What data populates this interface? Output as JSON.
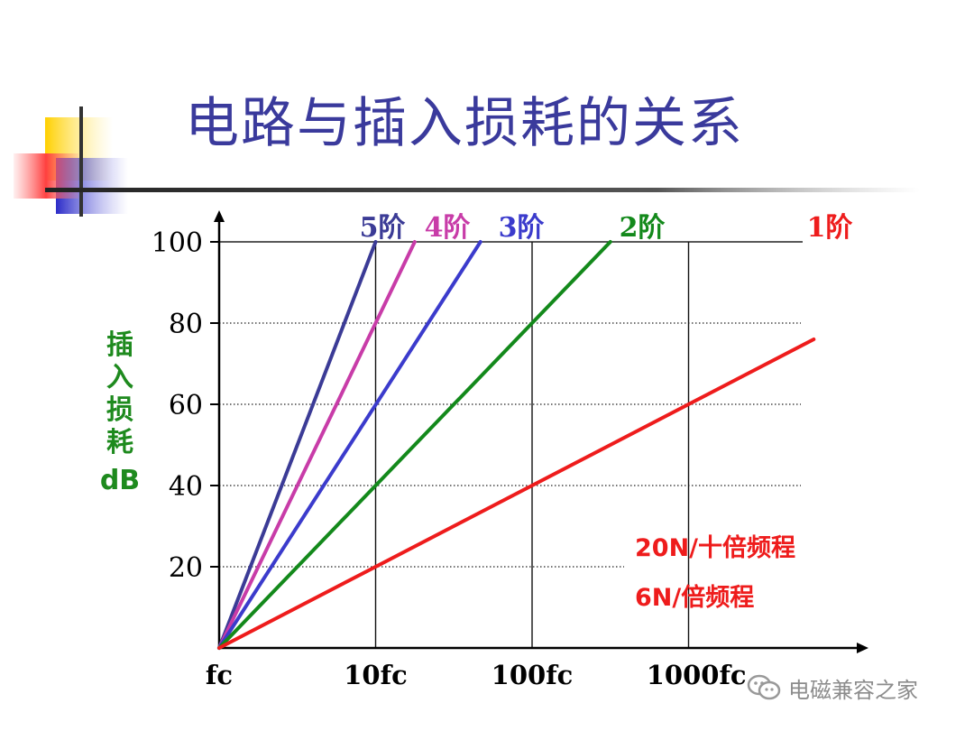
{
  "title": "电路与插入损耗的关系",
  "watermark": "电磁兼容之家",
  "colors": {
    "title": "#3a3a9c",
    "order1": "#ee1c1c",
    "order2": "#13891b",
    "order3": "#3b3bcc",
    "order4": "#c83ca8",
    "order5": "#3b3b96"
  },
  "chart_data": {
    "type": "line",
    "ylabel": "插入损耗",
    "yunit": "dB",
    "x_scale": "log",
    "x_ticks": [
      "fc",
      "10fc",
      "100fc",
      "1000fc"
    ],
    "y_ticks": [
      "100",
      "80",
      "60",
      "40",
      "20"
    ],
    "ylim": [
      0,
      100
    ],
    "xlim_decades": [
      0,
      3.8
    ],
    "grid": "dotted horizontal lines at 20, 40, 60, 80; solid at 100; solid vertical lines at 10fc, 100fc, 1000fc",
    "series": [
      {
        "name": "5阶",
        "order": 5,
        "x_decades": [
          0,
          1.0
        ],
        "y": [
          0,
          100
        ]
      },
      {
        "name": "4阶",
        "order": 4,
        "x_decades": [
          0,
          1.25
        ],
        "y": [
          0,
          100
        ]
      },
      {
        "name": "3阶",
        "order": 3,
        "x_decades": [
          0,
          1.67
        ],
        "y": [
          0,
          100
        ]
      },
      {
        "name": "2阶",
        "order": 2,
        "x_decades": [
          0,
          2.5
        ],
        "y": [
          0,
          100
        ]
      },
      {
        "name": "1阶",
        "order": 1,
        "x_decades": [
          0,
          3.8
        ],
        "y": [
          0,
          76
        ]
      }
    ],
    "annotations": [
      "20N/十倍频程",
      "6N/倍频程"
    ]
  }
}
